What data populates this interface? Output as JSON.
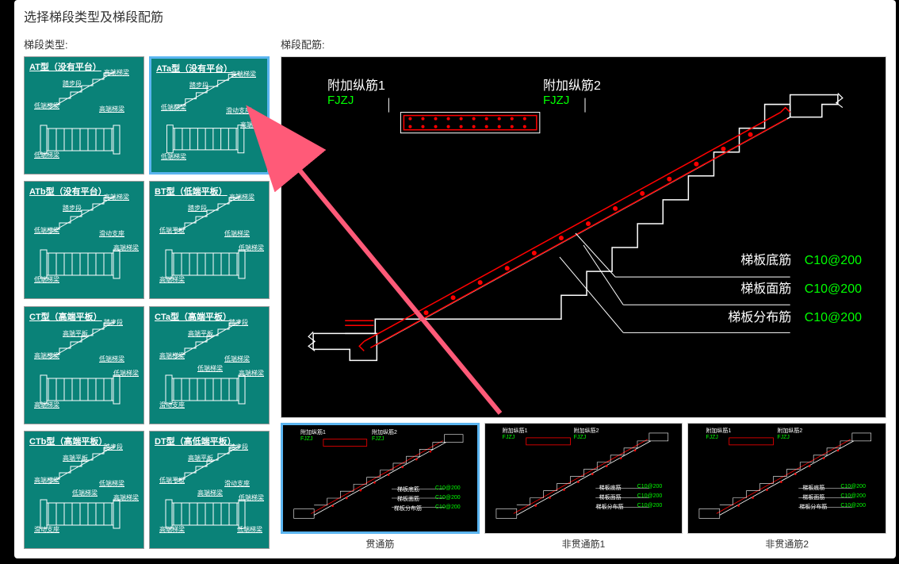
{
  "dialog": {
    "title": "选择梯段类型及梯段配筋"
  },
  "left": {
    "label": "梯段类型:",
    "types": [
      {
        "id": "AT",
        "title": "AT型（没有平台）",
        "labels": [
          "踏步段",
          "高端梯梁",
          "低端梯梁",
          "高端梯梁",
          "低端梯梁"
        ]
      },
      {
        "id": "ATa",
        "title": "ATa型（没有平台）",
        "labels": [
          "踏步段",
          "高端梯梁",
          "低端梯梁",
          "滑动支座",
          "低端梯梁",
          "高端梯梁"
        ],
        "selected": true
      },
      {
        "id": "ATb",
        "title": "ATb型（没有平台）",
        "labels": [
          "踏步段",
          "高端梯梁",
          "低端梯梁",
          "滑动支座",
          "低端梯梁",
          "高端梯梁"
        ]
      },
      {
        "id": "BT",
        "title": "BT型（低端平板）",
        "labels": [
          "踏步段",
          "高端梯梁",
          "低端平板",
          "低端梯梁",
          "高端梯梁",
          "低端梯梁"
        ]
      },
      {
        "id": "CT",
        "title": "CT型（高端平板）",
        "labels": [
          "高端平板",
          "踏步段",
          "高端梯梁",
          "低端梯梁",
          "高端梯梁",
          "低端梯梁"
        ]
      },
      {
        "id": "CTa",
        "title": "CTa型（高端平板）",
        "labels": [
          "高端平板",
          "踏步段",
          "高端梯梁",
          "低端梯梁",
          "滑动支座",
          "高端梯梁",
          "低端梯梁"
        ]
      },
      {
        "id": "CTb",
        "title": "CTb型（高端平板）",
        "labels": [
          "高端平板",
          "踏步段",
          "高端梯梁",
          "低端梯梁",
          "滑动支座",
          "高端梯梁",
          "低端梯梁"
        ]
      },
      {
        "id": "DT",
        "title": "DT型（高低端平板）",
        "labels": [
          "高端平板",
          "踏步段",
          "低端平板",
          "滑动支座",
          "高端梯梁",
          "低端梯梁",
          "高端梯梁",
          "低端梯梁"
        ]
      }
    ]
  },
  "right": {
    "label": "梯段配筋:",
    "top_labels": {
      "l1": "附加纵筋1",
      "l2": "附加纵筋2",
      "fjzj": "FJZJ"
    },
    "rebar": [
      {
        "name": "梯板底筋",
        "value": "C10@200"
      },
      {
        "name": "梯板面筋",
        "value": "C10@200"
      },
      {
        "name": "梯板分布筋",
        "value": "C10@200"
      }
    ],
    "thumbs": [
      {
        "id": "t1",
        "label": "贯通筋",
        "selected": true
      },
      {
        "id": "t2",
        "label": "非贯通筋1"
      },
      {
        "id": "t3",
        "label": "非贯通筋2"
      }
    ],
    "thumb_detail": {
      "top1": "附加纵筋1",
      "top2": "附加纵筋2",
      "fjzj": "FJZJ",
      "r1": "梯板底筋",
      "r2": "梯板面筋",
      "r3": "梯板分布筋",
      "v": "C10@200"
    }
  },
  "colors": {
    "teal": "#0a8278",
    "selected_border": "#5bb5f0",
    "green": "#00ff00",
    "red": "#ff0000",
    "arrow": "#ff5a78"
  }
}
